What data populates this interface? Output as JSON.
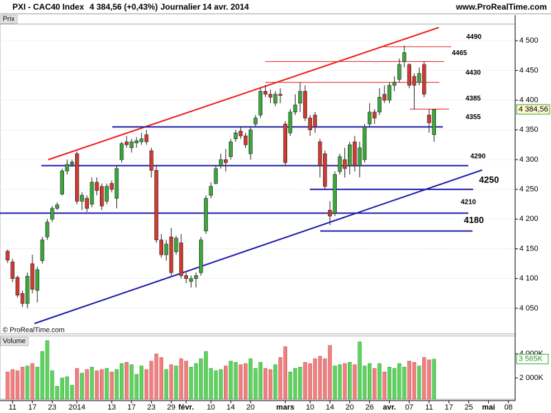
{
  "header": {
    "instrument": "PXI - CAC40 Index",
    "quote": "4 384,56 (+0,43%)",
    "period": "Journalier",
    "date": "14 avr. 2014",
    "site": "www.ProRealTime.com",
    "copyright": "© ProRealTime.com"
  },
  "chart_data": {
    "type": "candlestick",
    "panel_label": "Prix",
    "ylim": [
      4007,
      4528
    ],
    "yticks": [
      {
        "value": 4050,
        "label": "4 050"
      },
      {
        "value": 4100,
        "label": "4 100"
      },
      {
        "value": 4150,
        "label": "4 150"
      },
      {
        "value": 4200,
        "label": "4 200"
      },
      {
        "value": 4250,
        "label": "4 250"
      },
      {
        "value": 4300,
        "label": "4 300"
      },
      {
        "value": 4350,
        "label": "4 350"
      },
      {
        "value": 4400,
        "label": "4 400"
      },
      {
        "value": 4450,
        "label": "4 450"
      },
      {
        "value": 4500,
        "label": "4 500"
      }
    ],
    "xticks": [
      {
        "value": 1,
        "label": "11"
      },
      {
        "value": 5,
        "label": "17"
      },
      {
        "value": 9,
        "label": "23"
      },
      {
        "value": 14,
        "label": "2014"
      },
      {
        "value": 21,
        "label": "13"
      },
      {
        "value": 25,
        "label": "17"
      },
      {
        "value": 29,
        "label": "23"
      },
      {
        "value": 33,
        "label": "29"
      },
      {
        "value": 36,
        "label": "févr."
      },
      {
        "value": 41,
        "label": "10"
      },
      {
        "value": 45,
        "label": "14"
      },
      {
        "value": 49,
        "label": "20"
      },
      {
        "value": 56,
        "label": "mars"
      },
      {
        "value": 61,
        "label": "10"
      },
      {
        "value": 65,
        "label": "14"
      },
      {
        "value": 69,
        "label": "20"
      },
      {
        "value": 73,
        "label": "26"
      },
      {
        "value": 77,
        "label": "avr."
      },
      {
        "value": 81,
        "label": "07"
      },
      {
        "value": 85,
        "label": "11"
      },
      {
        "value": 89,
        "label": "17"
      },
      {
        "value": 93,
        "label": "25"
      },
      {
        "value": 97,
        "label": "mai"
      },
      {
        "value": 101,
        "label": "08"
      }
    ],
    "up_color": "#3aa83a",
    "down_color": "#d33a2f",
    "ohlc": [
      [
        4146,
        4149,
        4126,
        4131
      ],
      [
        4128,
        4133,
        4094,
        4100
      ],
      [
        4102,
        4105,
        4068,
        4072
      ],
      [
        4075,
        4080,
        4052,
        4058
      ],
      [
        4058,
        4110,
        4050,
        4104
      ],
      [
        4125,
        4140,
        4075,
        4082
      ],
      [
        4080,
        4120,
        4060,
        4115
      ],
      [
        4130,
        4170,
        4125,
        4165
      ],
      [
        4170,
        4200,
        4165,
        4195
      ],
      [
        4200,
        4222,
        4195,
        4218
      ],
      [
        4218,
        4228,
        4215,
        4224
      ],
      [
        4242,
        4285,
        4240,
        4281
      ],
      [
        4281,
        4300,
        4275,
        4292
      ],
      [
        4292,
        4300,
        4288,
        4296
      ],
      [
        4310,
        4314,
        4225,
        4230
      ],
      [
        4230,
        4245,
        4215,
        4240
      ],
      [
        4235,
        4240,
        4212,
        4218
      ],
      [
        4225,
        4270,
        4220,
        4262
      ],
      [
        4262,
        4270,
        4240,
        4248
      ],
      [
        4255,
        4260,
        4215,
        4222
      ],
      [
        4230,
        4260,
        4225,
        4255
      ],
      [
        4260,
        4265,
        4245,
        4250
      ],
      [
        4235,
        4290,
        4218,
        4285
      ],
      [
        4300,
        4330,
        4295,
        4327
      ],
      [
        4330,
        4340,
        4320,
        4325
      ],
      [
        4320,
        4335,
        4312,
        4330
      ],
      [
        4328,
        4338,
        4320,
        4332
      ],
      [
        4330,
        4345,
        4325,
        4335
      ],
      [
        4342,
        4350,
        4325,
        4330
      ],
      [
        4315,
        4320,
        4270,
        4282
      ],
      [
        4282,
        4290,
        4160,
        4165
      ],
      [
        4165,
        4175,
        4135,
        4140
      ],
      [
        4140,
        4165,
        4130,
        4158
      ],
      [
        4170,
        4185,
        4105,
        4110
      ],
      [
        4145,
        4172,
        4140,
        4168
      ],
      [
        4160,
        4175,
        4100,
        4105
      ],
      [
        4105,
        4110,
        4092,
        4100
      ],
      [
        4095,
        4105,
        4085,
        4100
      ],
      [
        4100,
        4110,
        4085,
        4105
      ],
      [
        4110,
        4170,
        4105,
        4165
      ],
      [
        4180,
        4240,
        4175,
        4235
      ],
      [
        4240,
        4262,
        4235,
        4255
      ],
      [
        4260,
        4290,
        4258,
        4285
      ],
      [
        4290,
        4310,
        4285,
        4300
      ],
      [
        4300,
        4318,
        4280,
        4295
      ],
      [
        4305,
        4335,
        4300,
        4330
      ],
      [
        4335,
        4350,
        4330,
        4345
      ],
      [
        4348,
        4355,
        4335,
        4340
      ],
      [
        4340,
        4345,
        4320,
        4325
      ],
      [
        4310,
        4355,
        4300,
        4350
      ],
      [
        4360,
        4375,
        4355,
        4370
      ],
      [
        4375,
        4420,
        4370,
        4415
      ],
      [
        4415,
        4425,
        4405,
        4410
      ],
      [
        4410,
        4418,
        4395,
        4405
      ],
      [
        4395,
        4415,
        4390,
        4410
      ],
      [
        4410,
        4420,
        4395,
        4408
      ],
      [
        4360,
        4365,
        4290,
        4295
      ],
      [
        4345,
        4385,
        4340,
        4380
      ],
      [
        4380,
        4410,
        4375,
        4392
      ],
      [
        4395,
        4430,
        4380,
        4415
      ],
      [
        4415,
        4425,
        4365,
        4370
      ],
      [
        4370,
        4375,
        4340,
        4350
      ],
      [
        4375,
        4380,
        4345,
        4355
      ],
      [
        4330,
        4335,
        4270,
        4290
      ],
      [
        4310,
        4315,
        4250,
        4255
      ],
      [
        4215,
        4230,
        4190,
        4205
      ],
      [
        4210,
        4280,
        4205,
        4275
      ],
      [
        4280,
        4310,
        4275,
        4305
      ],
      [
        4300,
        4320,
        4270,
        4285
      ],
      [
        4290,
        4330,
        4275,
        4325
      ],
      [
        4330,
        4340,
        4280,
        4290
      ],
      [
        4290,
        4330,
        4270,
        4320
      ],
      [
        4300,
        4360,
        4295,
        4355
      ],
      [
        4360,
        4395,
        4355,
        4380
      ],
      [
        4380,
        4385,
        4360,
        4370
      ],
      [
        4380,
        4420,
        4375,
        4405
      ],
      [
        4410,
        4425,
        4395,
        4400
      ],
      [
        4400,
        4430,
        4395,
        4425
      ],
      [
        4425,
        4440,
        4415,
        4430
      ],
      [
        4435,
        4470,
        4430,
        4460
      ],
      [
        4465,
        4492,
        4455,
        4480
      ],
      [
        4460,
        4462,
        4420,
        4425
      ],
      [
        4440,
        4445,
        4385,
        4425
      ],
      [
        4430,
        4455,
        4425,
        4445
      ],
      [
        4460,
        4465,
        4405,
        4410
      ],
      [
        4375,
        4385,
        4345,
        4362
      ],
      [
        4342,
        4385,
        4330,
        4384.56
      ]
    ],
    "last_label": "4 384,56",
    "levels": [
      4490,
      4465,
      4430,
      4385,
      4355,
      4290,
      4250,
      4210,
      4180
    ],
    "volume": {
      "panel_label": "Volume",
      "ylim": [
        230,
        5490
      ],
      "yticks": [
        {
          "value": 2000,
          "label": "2 000K"
        },
        {
          "value": 4000,
          "label": "4 000K"
        }
      ],
      "up_color": "#5fd35f",
      "down_color": "#f08080",
      "values": [
        2500,
        2700,
        2600,
        2900,
        3000,
        3200,
        2900,
        4200,
        5100,
        2600,
        1300,
        2000,
        2100,
        1400,
        2800,
        2400,
        2700,
        2900,
        2600,
        2700,
        2800,
        2500,
        2700,
        3200,
        3300,
        3100,
        2300,
        3000,
        2700,
        3400,
        4000,
        3700,
        2700,
        3100,
        3000,
        3600,
        3400,
        2900,
        3200,
        3600,
        4200,
        2800,
        2600,
        2700,
        3000,
        3400,
        3300,
        3100,
        3200,
        3600,
        2800,
        3300,
        2800,
        2700,
        3100,
        3700,
        4600,
        2500,
        2800,
        2900,
        3300,
        3200,
        3600,
        3800,
        3600,
        4700,
        3000,
        3100,
        3200,
        3300,
        3100,
        5000,
        3000,
        3200,
        2800,
        3200,
        2500,
        2900,
        2800,
        3200,
        2900,
        3400,
        3300,
        3000,
        3700,
        3500,
        3565
      ],
      "last_label": "3 565K"
    }
  }
}
